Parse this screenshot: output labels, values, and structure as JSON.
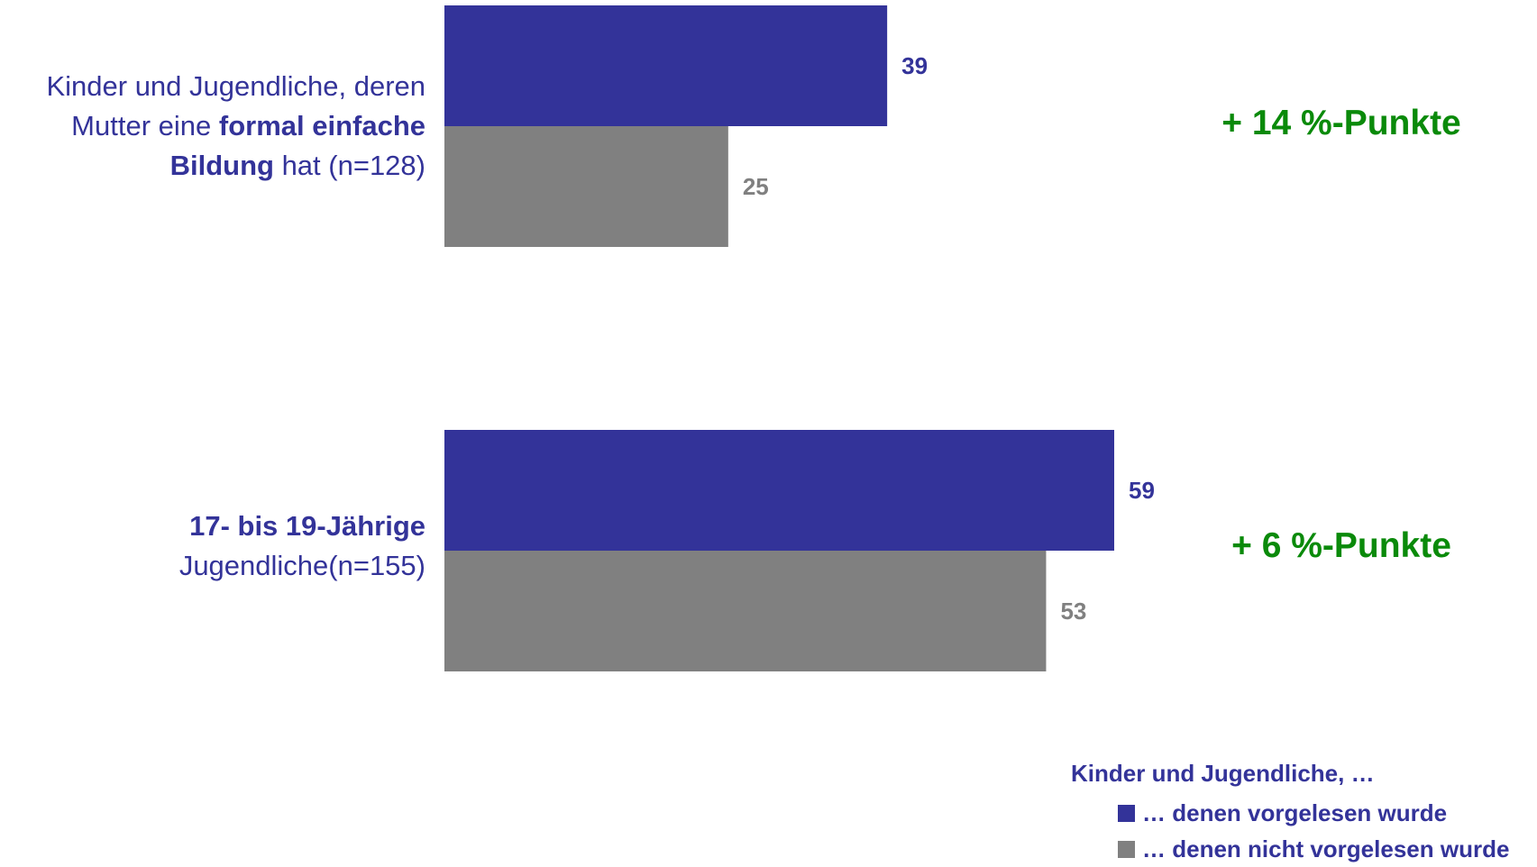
{
  "chart_data": {
    "type": "bar",
    "orientation": "horizontal",
    "categories": [
      {
        "id": "formal-einfache-bildung",
        "label_parts": [
          {
            "text": "Kinder und Jugendliche, deren",
            "bold": false
          },
          {
            "text": "Mutter eine ",
            "bold": false
          },
          {
            "text": "formal einfache",
            "bold": true
          },
          {
            "text": "Bildung",
            "bold": true
          },
          {
            "text": " hat (n=128)",
            "bold": false
          }
        ],
        "difference": "+ 14 %-Punkte"
      },
      {
        "id": "17-19-jaehrige",
        "label_parts": [
          {
            "text": "17- bis 19-Jährige",
            "bold": true
          },
          {
            "text": "Jugendliche(n=155)",
            "bold": false
          }
        ],
        "difference": "+ 6 %-Punkte"
      }
    ],
    "series": [
      {
        "name": "… denen vorgelesen wurde",
        "color": "#333399",
        "label_color": "#333399",
        "values": [
          39,
          59
        ]
      },
      {
        "name": "… denen nicht vorgelesen wurde",
        "color": "#808080",
        "label_color": "#808080",
        "values": [
          25,
          53
        ]
      }
    ],
    "xlim": [
      0,
      100
    ],
    "grid": false,
    "legend": {
      "title": "Kinder und Jugendliche, …",
      "placement": "bottom-right"
    },
    "difference_color": "#0a8a0a"
  }
}
